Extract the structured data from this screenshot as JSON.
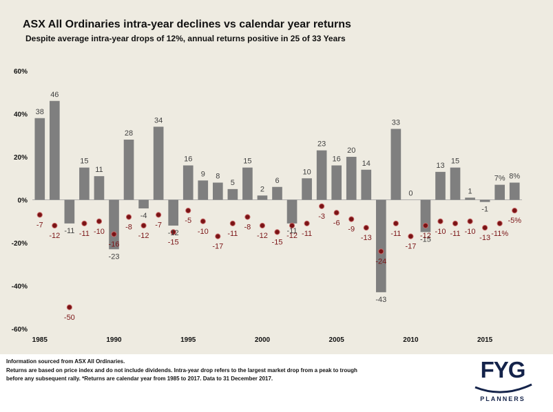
{
  "colors": {
    "bar": "#7f7f7f",
    "dot": "#7a1416",
    "dot_outline": "#c96a6a",
    "bar_label": "#404040",
    "dot_label": "#7a1416",
    "brand": "#14234a"
  },
  "footer": {
    "line1": "Information sourced from ASX All Ordinaries.",
    "line2": "Returns are based on price index and do not include dividends. Intra-year drop refers to the largest market drop from a peak to trough",
    "line3": "before any subsequent rally. *Returns are calendar year from 1985 to 2017. Data to 31 December 2017."
  },
  "logo": {
    "text": "FYG",
    "subtext": "PLANNERS"
  },
  "chart_data": {
    "type": "bar",
    "title": "ASX All Ordinaries intra-year declines vs calendar year returns",
    "subtitle": "Despite average intra-year drops of 12%, annual returns positive in 25 of 33 Years",
    "ylim": [
      -60,
      60
    ],
    "yticks": [
      60,
      40,
      20,
      0,
      -20,
      -40,
      -60
    ],
    "ytick_labels": [
      "60%",
      "40%",
      "20%",
      "0%",
      "-20%",
      "-40%",
      "-60%"
    ],
    "xticks": [
      1985,
      1990,
      1995,
      2000,
      2005,
      2010,
      2015
    ],
    "xtick_labels": [
      "1985",
      "1990",
      "1995",
      "2000",
      "2005",
      "2010",
      "2015"
    ],
    "years": [
      1985,
      1986,
      1987,
      1988,
      1989,
      1990,
      1991,
      1992,
      1993,
      1994,
      1995,
      1996,
      1997,
      1998,
      1999,
      2000,
      2001,
      2002,
      2003,
      2004,
      2005,
      2006,
      2007,
      2008,
      2009,
      2010,
      2011,
      2012,
      2013,
      2014,
      2015,
      2016,
      2017
    ],
    "series": [
      {
        "name": "Calendar year return",
        "values": [
          38,
          46,
          -11,
          15,
          11,
          -23,
          28,
          -4,
          34,
          -12,
          16,
          9,
          8,
          5,
          15,
          2,
          6,
          -11,
          10,
          23,
          16,
          20,
          14,
          -43,
          33,
          0,
          -15,
          13,
          15,
          1,
          -1,
          7,
          8
        ],
        "labels": [
          "38",
          "46",
          "-11",
          "15",
          "11",
          "-23",
          "28",
          "-4",
          "34",
          "-12",
          "16",
          "9",
          "8",
          "5",
          "15",
          "2",
          "6",
          "-11",
          "10",
          "23",
          "16",
          "20",
          "14",
          "-43",
          "33",
          "0",
          "-15",
          "13",
          "15",
          "1",
          "-1",
          "7%",
          "8%"
        ]
      },
      {
        "name": "Intra-year decline",
        "values": [
          -7,
          -12,
          -50,
          -11,
          -10,
          -16,
          -8,
          -12,
          -7,
          -15,
          -5,
          -10,
          -17,
          -11,
          -8,
          -12,
          -15,
          -12,
          -11,
          -3,
          -6,
          -9,
          -13,
          -24,
          -11,
          -17,
          -12,
          -10,
          -11,
          -10,
          -13,
          -11,
          -5
        ],
        "labels": [
          "-7",
          "-12",
          "-50",
          "-11",
          "-10",
          "-16",
          "-8",
          "-12",
          "-7",
          "-15",
          "-5",
          "-10",
          "-17",
          "-11",
          "-8",
          "-12",
          "-15",
          "-12",
          "-11",
          "-3",
          "-6",
          "-9",
          "-13",
          "-24",
          "-11",
          "-17",
          "-12",
          "-10",
          "-11",
          "-10",
          "-13",
          "-11%",
          "-5%"
        ]
      }
    ]
  }
}
